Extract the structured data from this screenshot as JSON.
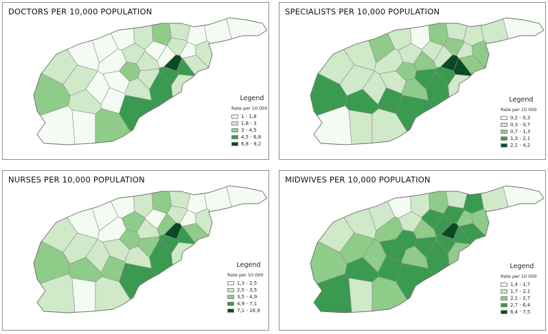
{
  "colors": {
    "class1": "#f4fbf3",
    "class2": "#cfe9c9",
    "class3": "#8fcc89",
    "class4": "#3a9b50",
    "class5": "#0b4a22",
    "border": "#8c8c8c"
  },
  "panels": [
    {
      "id": "doctors",
      "title": "DOCTORS PER 10,000 POPULATION",
      "legend_heading": "Legend",
      "legend_sub": "Rate per 10 000",
      "classes": [
        "1 - 1,8",
        "1,8 - 3",
        "3 - 4,5",
        "4,5 - 6,8",
        "6,8 - 9,2"
      ],
      "shading": [
        2,
        1,
        3,
        2,
        1,
        1,
        2,
        3,
        2,
        1,
        1,
        1,
        2,
        1,
        2,
        1,
        5,
        4,
        2,
        4,
        2,
        1,
        2,
        2,
        3,
        1,
        4,
        2,
        2,
        1,
        1,
        1,
        2,
        1,
        1,
        3,
        4
      ]
    },
    {
      "id": "specialists",
      "title": "SPECIALISTS PER 10,000 POPULATION",
      "legend_heading": "Legend",
      "legend_sub": "Rate per 10 000",
      "classes": [
        "0,2 - 0,3",
        "0,3 - 0,7",
        "0,7 - 1,3",
        "1,3 - 2,1",
        "2,1 - 4,2"
      ],
      "shading": [
        2,
        2,
        4,
        2,
        3,
        2,
        1,
        3,
        2,
        2,
        2,
        1,
        3,
        2,
        3,
        2,
        5,
        5,
        3,
        4,
        2,
        2,
        3,
        2,
        3,
        2,
        4,
        4,
        3,
        2,
        4,
        2,
        4,
        2,
        1,
        2,
        4
      ]
    },
    {
      "id": "nurses",
      "title": "NURSES PER 10,000 POPULATION",
      "legend_heading": "Legend",
      "legend_sub": "Rate per 10 000",
      "classes": [
        "1,3 - 2,5",
        "2,5 - 3,5",
        "3,5 - 4,9",
        "4,9 - 7,1",
        "7,1 - 16,9"
      ],
      "shading": [
        2,
        1,
        3,
        2,
        1,
        1,
        2,
        3,
        2,
        1,
        1,
        1,
        2,
        1,
        2,
        3,
        5,
        4,
        3,
        4,
        2,
        1,
        2,
        3,
        3,
        1,
        4,
        3,
        2,
        2,
        3,
        2,
        3,
        1,
        2,
        2,
        4
      ]
    },
    {
      "id": "midwives",
      "title": "MIDWIVES PER 10,000 POPULATION",
      "legend_heading": "Legend",
      "legend_sub": "Rate per 10 000",
      "classes": [
        "1,4 - 1,7",
        "1,7 - 2,1",
        "2,1 - 2,7",
        "2,7 - 6,4",
        "6,4 - 7,5"
      ],
      "shading": [
        2,
        2,
        3,
        3,
        2,
        1,
        2,
        3,
        2,
        4,
        2,
        1,
        4,
        3,
        3,
        4,
        5,
        4,
        4,
        4,
        3,
        4,
        3,
        2,
        4,
        3,
        4,
        4,
        3,
        4,
        4,
        3,
        4,
        2,
        4,
        3,
        4
      ]
    }
  ]
}
